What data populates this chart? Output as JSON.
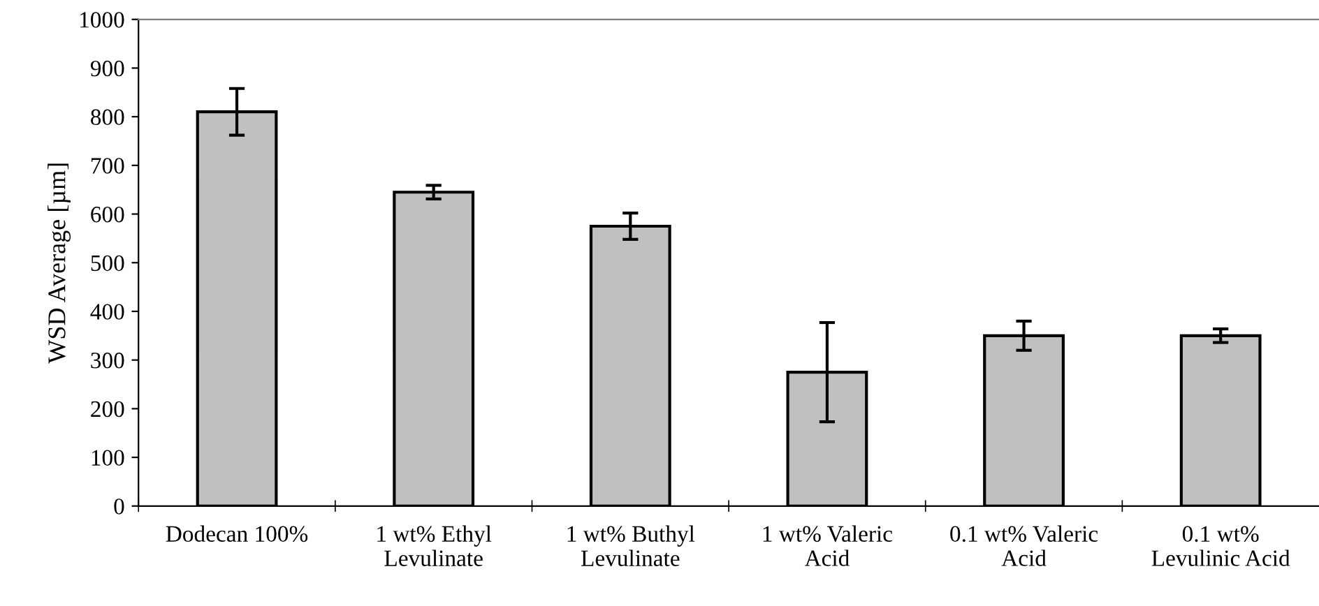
{
  "chart_data": {
    "type": "bar",
    "ylabel": "WSD Average [µm]",
    "categories": [
      "Dodecan 100%",
      "1 wt% Ethyl\nLevulinate",
      "1 wt% Buthyl\nLevulinate",
      "1 wt% Valeric\nAcid",
      "0.1 wt% Valeric\nAcid",
      "0.1 wt%\nLevulinic Acid"
    ],
    "values": [
      810,
      645,
      575,
      275,
      350,
      350
    ],
    "errors": [
      48,
      14,
      27,
      102,
      30,
      14
    ],
    "color": "#c0c0c0",
    "ylim": [
      0,
      1000
    ],
    "yticks": [
      0,
      100,
      200,
      300,
      400,
      500,
      600,
      700,
      800,
      900,
      1000
    ],
    "grid": false,
    "legend": false
  }
}
